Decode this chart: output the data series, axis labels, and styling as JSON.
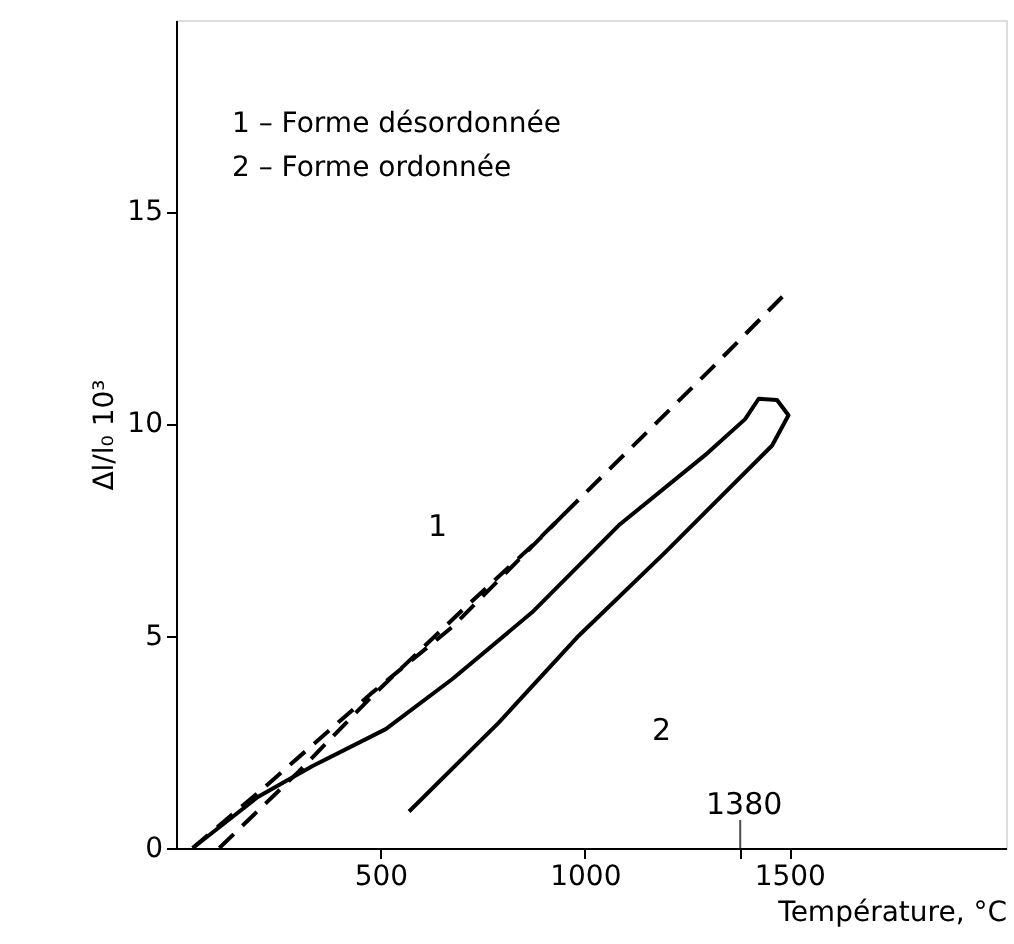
{
  "chart_data": {
    "type": "line",
    "xlabel": "Température, °C",
    "ylabel": "Δl/l₀ 10³",
    "xlim": [
      0,
      2030
    ],
    "ylim": [
      0,
      19.5
    ],
    "xticks": [
      500,
      1000,
      {
        "value": 1380,
        "label": null
      },
      1500
    ],
    "yticks": [
      0,
      5,
      10,
      15
    ],
    "grid": false,
    "marker": "none",
    "series": [
      {
        "color": "#000000",
        "line_style": "dashed",
        "x": [
          106,
          300,
          480,
          700,
          871,
          1100,
          1300,
          1495
        ],
        "values": [
          0,
          1.8,
          3.58,
          5.6,
          7.12,
          9.3,
          11.2,
          13.1
        ]
      },
      {
        "color": "#000000",
        "line_style": "dashed",
        "x": [
          41,
          220,
          480,
          675,
          953
        ],
        "values": [
          0,
          1.46,
          3.66,
          5.2,
          7.9
        ]
      },
      {
        "color": "#000000",
        "line_style": "solid",
        "x": [
          41,
          200,
          334,
          513,
          676,
          871,
          1083,
          1300,
          1392,
          1425,
          1470,
          1498,
          1458,
          1197,
          985,
          790,
          570
        ],
        "values": [
          0,
          1.2,
          1.93,
          2.8,
          3.98,
          5.55,
          7.6,
          9.3,
          10.1,
          10.58,
          10.55,
          10.19,
          9.48,
          6.97,
          5.0,
          2.96,
          0.86
        ]
      }
    ],
    "annotations": [
      "1 – Forme désordonnée",
      "2 – Forme ordonnée",
      "1",
      "2",
      "1380"
    ]
  }
}
